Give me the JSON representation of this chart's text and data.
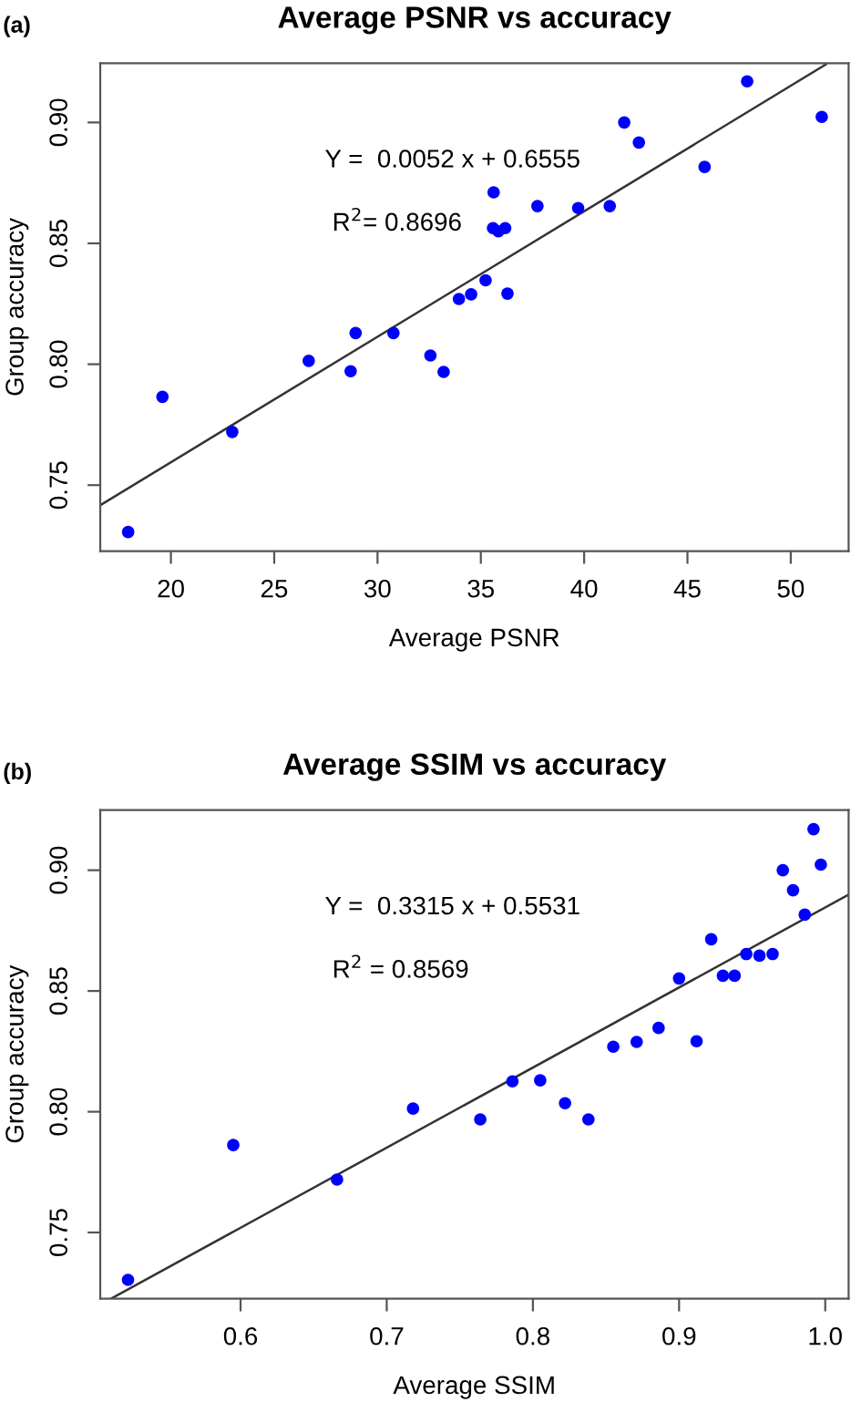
{
  "chart_data": [
    {
      "type": "scatter",
      "title": "Average PSNR vs accuracy",
      "xlabel": "Average PSNR",
      "ylabel": "Group accuracy",
      "annotations": [
        "(a)",
        "Y =  0.0052 x + 0.6555",
        "R$^{2}$= 0.8696"
      ],
      "xlim": [
        16.58,
        52.8
      ],
      "ylim": [
        0.7227,
        0.9245
      ],
      "xticks": [
        20,
        25,
        30,
        35,
        40,
        45,
        50
      ],
      "yticks": [
        {
          "value": 0.75,
          "label": "0.75"
        },
        {
          "value": 0.8,
          "label": "0.80"
        },
        {
          "value": 0.85,
          "label": "0.85"
        },
        {
          "value": 0.9,
          "label": "0.90"
        }
      ],
      "grid": false,
      "legend": false,
      "series": [
        {
          "marker": "circle",
          "color": "#0000ff",
          "x": [
            47.89,
            51.5,
            41.94,
            42.65,
            45.83,
            35.62,
            37.74,
            39.71,
            41.24,
            35.59,
            35.85,
            36.18,
            35.23,
            33.94,
            34.53,
            36.29,
            28.94,
            30.77,
            32.56,
            26.67,
            28.7,
            33.2,
            19.59,
            22.97,
            17.93
          ],
          "values": [
            0.917,
            0.9023,
            0.9,
            0.8917,
            0.8816,
            0.8711,
            0.8654,
            0.8646,
            0.8654,
            0.8563,
            0.855,
            0.8563,
            0.8347,
            0.827,
            0.8289,
            0.8292,
            0.8129,
            0.8129,
            0.8036,
            0.8014,
            0.7971,
            0.7968,
            0.7865,
            0.772,
            0.7306
          ]
        },
        {
          "type": "line",
          "marker": "none",
          "color": "#333333",
          "x": [
            16.6,
            51.7
          ],
          "values": [
            0.7418,
            0.924
          ]
        }
      ]
    },
    {
      "type": "scatter",
      "title": "Average SSIM vs accuracy",
      "xlabel": "Average SSIM",
      "ylabel": "Group accuracy",
      "annotations": [
        "(b)",
        "Y =  0.3315 x + 0.5531",
        "R$^{2}$ = 0.8569"
      ],
      "xlim": [
        0.504,
        1.016
      ],
      "ylim": [
        0.7226,
        0.9249
      ],
      "xticks": [
        0.6,
        0.7,
        0.8,
        0.9,
        {
          "value": 1.0,
          "label": "1.0"
        }
      ],
      "yticks": [
        {
          "value": 0.75,
          "label": "0.75"
        },
        {
          "value": 0.8,
          "label": "0.80"
        },
        {
          "value": 0.85,
          "label": "0.85"
        },
        {
          "value": 0.9,
          "label": "0.90"
        }
      ],
      "grid": false,
      "legend": false,
      "series": [
        {
          "marker": "circle",
          "color": "#0000ff",
          "x": [
            0.992,
            0.997,
            0.971,
            0.978,
            0.986,
            0.922,
            0.946,
            0.955,
            0.964,
            0.9,
            0.93,
            0.938,
            0.886,
            0.855,
            0.871,
            0.912,
            0.786,
            0.805,
            0.822,
            0.718,
            0.764,
            0.838,
            0.595,
            0.666,
            0.523
          ],
          "values": [
            0.917,
            0.9023,
            0.9,
            0.8917,
            0.8816,
            0.8714,
            0.8653,
            0.8646,
            0.8653,
            0.8552,
            0.8563,
            0.8563,
            0.8347,
            0.8269,
            0.8289,
            0.8292,
            0.8126,
            0.813,
            0.8035,
            0.8013,
            0.7968,
            0.7968,
            0.7862,
            0.7719,
            0.7304
          ]
        },
        {
          "type": "line",
          "marker": "none",
          "color": "#333333",
          "x": [
            0.512,
            1.016
          ],
          "values": [
            0.7228,
            0.8899
          ]
        }
      ]
    }
  ]
}
